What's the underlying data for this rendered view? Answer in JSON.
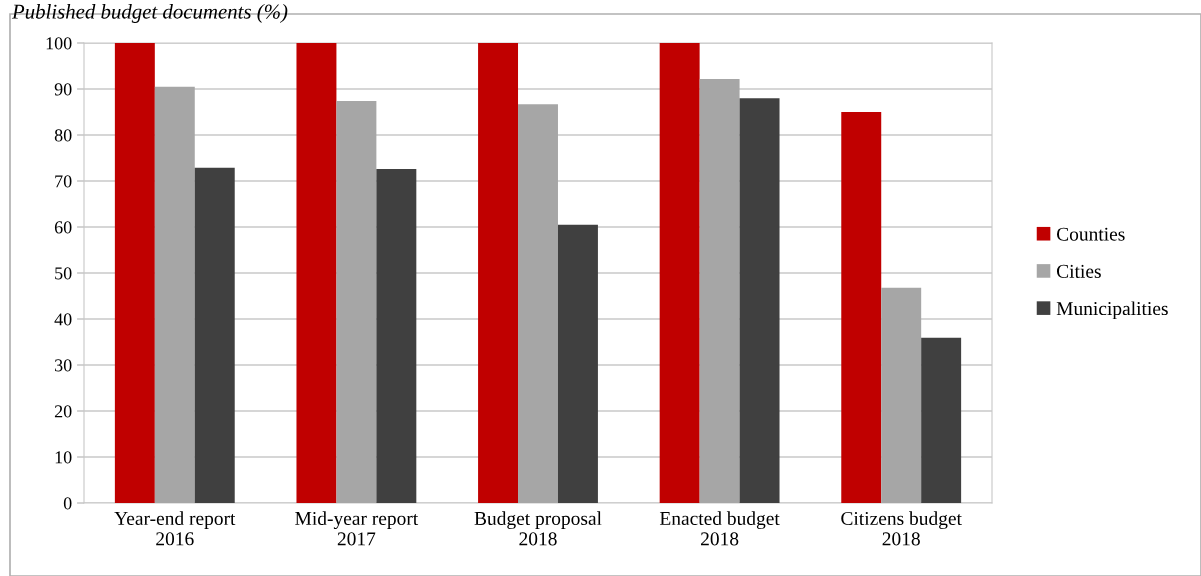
{
  "chart_data": {
    "type": "bar",
    "title": "Published budget documents (%)",
    "categories": [
      "Year-end report\n2016",
      "Mid-year report\n2017",
      "Budget proposal\n2018",
      "Enacted budget\n2018",
      "Citizens budget\n2018"
    ],
    "series": [
      {
        "name": "Counties",
        "color": "#c00000",
        "values": [
          100,
          100,
          100,
          100,
          85
        ]
      },
      {
        "name": "Cities",
        "color": "#a6a6a6",
        "values": [
          90.5,
          87.4,
          86.7,
          92.2,
          46.8
        ]
      },
      {
        "name": "Municipalities",
        "color": "#404040",
        "values": [
          72.9,
          72.6,
          60.5,
          88.0,
          35.9
        ]
      }
    ],
    "ylim": [
      0,
      100
    ],
    "yticks": [
      0,
      10,
      20,
      30,
      40,
      50,
      60,
      70,
      80,
      90,
      100
    ],
    "grid": "y",
    "legend": "right"
  }
}
